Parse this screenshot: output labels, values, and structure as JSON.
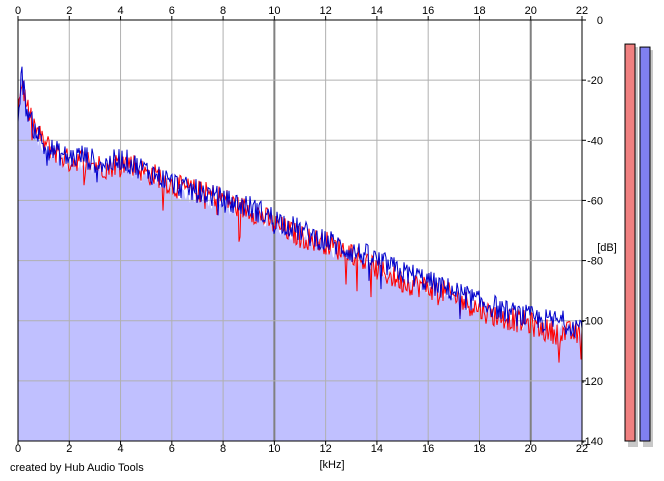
{
  "credit": "created by Hub Audio Tools",
  "colors": {
    "background": "#ffffff",
    "fill": "#c0c0ff",
    "left_channel": "#ff0000",
    "right_channel": "#0000cc",
    "grid": "#b0b0b0",
    "grid_major": "#808080",
    "meter_left": "#f08080",
    "meter_right": "#8080f0"
  },
  "chart_data": {
    "type": "line",
    "xlabel": "[kHz]",
    "ylabel": "[dB]",
    "xlim": [
      0,
      22
    ],
    "ylim": [
      -140,
      0
    ],
    "x_ticks": [
      "0",
      "2",
      "4",
      "6",
      "8",
      "10",
      "12",
      "14",
      "16",
      "18",
      "20",
      "22"
    ],
    "y_ticks": [
      "0",
      "-20",
      "-40",
      "-60",
      "-80",
      "-100",
      "-120",
      "-140"
    ],
    "grid": true,
    "series": [
      {
        "color": "#ff0000",
        "x": [
          0,
          0.15,
          0.3,
          0.5,
          0.8,
          1,
          1.5,
          2,
          2.5,
          3,
          3.5,
          4,
          4.5,
          5,
          5.5,
          6,
          6.5,
          7,
          7.5,
          8,
          8.5,
          9,
          9.5,
          10,
          10.5,
          11,
          11.5,
          12,
          12.5,
          13,
          13.5,
          14,
          14.5,
          15,
          15.5,
          16,
          16.5,
          17,
          17.5,
          18,
          18.5,
          19,
          19.5,
          20,
          20.5,
          21,
          21.5,
          22
        ],
        "y": [
          -30,
          -20,
          -27,
          -33,
          -38,
          -41,
          -44,
          -47,
          -46,
          -48,
          -49,
          -47,
          -48,
          -51,
          -52,
          -55,
          -56,
          -57,
          -58,
          -59,
          -62,
          -63,
          -65,
          -68,
          -70,
          -72,
          -73,
          -74,
          -76,
          -77,
          -80,
          -83,
          -85,
          -87,
          -88,
          -89,
          -90,
          -92,
          -94,
          -96,
          -98,
          -99,
          -100,
          -101,
          -103,
          -104,
          -104,
          -105
        ]
      },
      {
        "color": "#0000cc",
        "x": [
          0,
          0.15,
          0.3,
          0.5,
          0.8,
          1,
          1.5,
          2,
          2.5,
          3,
          3.5,
          4,
          4.5,
          5,
          5.5,
          6,
          6.5,
          7,
          7.5,
          8,
          8.5,
          9,
          9.5,
          10,
          10.5,
          11,
          11.5,
          12,
          12.5,
          13,
          13.5,
          14,
          14.5,
          15,
          15.5,
          16,
          16.5,
          17,
          17.5,
          18,
          18.5,
          19,
          19.5,
          20,
          20.5,
          21,
          21.5,
          22
        ],
        "y": [
          -31,
          -18,
          -28,
          -34,
          -38,
          -42,
          -44,
          -46,
          -45,
          -47,
          -48,
          -46,
          -48,
          -50,
          -52,
          -54,
          -56,
          -57,
          -58,
          -60,
          -61,
          -62,
          -64,
          -66,
          -68,
          -70,
          -72,
          -73,
          -75,
          -77,
          -78,
          -80,
          -82,
          -84,
          -85,
          -87,
          -89,
          -90,
          -92,
          -94,
          -95,
          -97,
          -98,
          -99,
          -100,
          -100,
          -101,
          -102
        ]
      }
    ],
    "meters": [
      {
        "channel": "left",
        "level": -8
      },
      {
        "channel": "right",
        "level": -9
      }
    ]
  }
}
